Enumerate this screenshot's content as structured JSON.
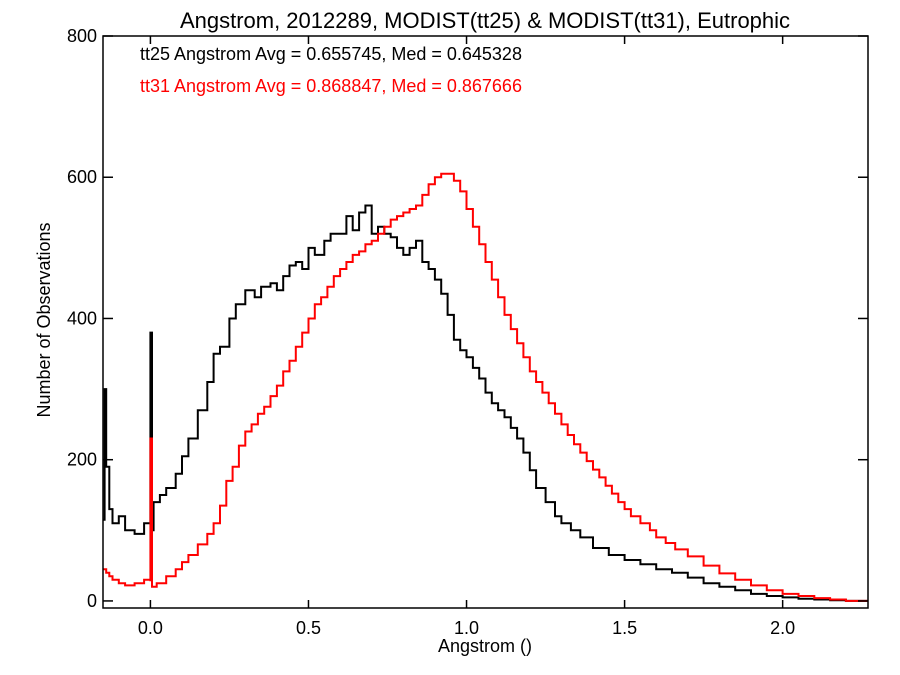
{
  "chart_data": {
    "type": "line",
    "title": "Angstrom, 2012289, MODIST(tt25) & MODIST(tt31), Eutrophic",
    "xlabel": "Angstrom ()",
    "ylabel": "Number of Observations",
    "xlim": [
      -0.15,
      2.27
    ],
    "ylim": [
      -10,
      800
    ],
    "x_ticks": [
      0.0,
      0.5,
      1.0,
      1.5,
      2.0
    ],
    "x_tick_labels": [
      "0.0",
      "0.5",
      "1.0",
      "1.5",
      "2.0"
    ],
    "y_ticks": [
      0,
      200,
      400,
      600,
      800
    ],
    "y_tick_labels": [
      "0",
      "200",
      "400",
      "600",
      "800"
    ],
    "grid": false,
    "annotations": [
      {
        "text": "tt25 Angstrom Avg = 0.655745, Med = 0.645328",
        "color": "#000000"
      },
      {
        "text": "tt31 Angstrom Avg = 0.868847, Med = 0.867666",
        "color": "#ff0000"
      }
    ],
    "series": [
      {
        "color": "#000000",
        "step": true,
        "points": [
          [
            -0.15,
            115
          ],
          [
            -0.145,
            300
          ],
          [
            -0.14,
            190
          ],
          [
            -0.13,
            130
          ],
          [
            -0.12,
            110
          ],
          [
            -0.1,
            120
          ],
          [
            -0.08,
            100
          ],
          [
            -0.05,
            95
          ],
          [
            -0.02,
            110
          ],
          [
            0.0,
            120
          ],
          [
            0.0,
            380
          ],
          [
            0.005,
            100
          ],
          [
            0.01,
            140
          ],
          [
            0.03,
            150
          ],
          [
            0.05,
            160
          ],
          [
            0.08,
            180
          ],
          [
            0.1,
            205
          ],
          [
            0.12,
            230
          ],
          [
            0.15,
            270
          ],
          [
            0.18,
            310
          ],
          [
            0.2,
            350
          ],
          [
            0.22,
            360
          ],
          [
            0.25,
            400
          ],
          [
            0.27,
            420
          ],
          [
            0.3,
            440
          ],
          [
            0.33,
            430
          ],
          [
            0.35,
            445
          ],
          [
            0.38,
            450
          ],
          [
            0.4,
            440
          ],
          [
            0.42,
            460
          ],
          [
            0.44,
            475
          ],
          [
            0.46,
            480
          ],
          [
            0.48,
            470
          ],
          [
            0.5,
            500
          ],
          [
            0.52,
            490
          ],
          [
            0.55,
            510
          ],
          [
            0.57,
            520
          ],
          [
            0.6,
            520
          ],
          [
            0.62,
            545
          ],
          [
            0.64,
            525
          ],
          [
            0.66,
            550
          ],
          [
            0.68,
            560
          ],
          [
            0.7,
            520
          ],
          [
            0.72,
            530
          ],
          [
            0.74,
            520
          ],
          [
            0.76,
            515
          ],
          [
            0.78,
            500
          ],
          [
            0.8,
            490
          ],
          [
            0.82,
            500
          ],
          [
            0.84,
            510
          ],
          [
            0.86,
            480
          ],
          [
            0.88,
            470
          ],
          [
            0.9,
            455
          ],
          [
            0.92,
            435
          ],
          [
            0.94,
            405
          ],
          [
            0.96,
            370
          ],
          [
            0.98,
            355
          ],
          [
            1.0,
            345
          ],
          [
            1.02,
            330
          ],
          [
            1.04,
            315
          ],
          [
            1.06,
            295
          ],
          [
            1.08,
            280
          ],
          [
            1.1,
            270
          ],
          [
            1.12,
            260
          ],
          [
            1.14,
            245
          ],
          [
            1.16,
            230
          ],
          [
            1.18,
            210
          ],
          [
            1.2,
            185
          ],
          [
            1.22,
            160
          ],
          [
            1.25,
            140
          ],
          [
            1.28,
            120
          ],
          [
            1.3,
            110
          ],
          [
            1.33,
            100
          ],
          [
            1.36,
            90
          ],
          [
            1.4,
            75
          ],
          [
            1.45,
            65
          ],
          [
            1.5,
            58
          ],
          [
            1.55,
            52
          ],
          [
            1.6,
            45
          ],
          [
            1.65,
            40
          ],
          [
            1.7,
            33
          ],
          [
            1.75,
            25
          ],
          [
            1.8,
            20
          ],
          [
            1.85,
            15
          ],
          [
            1.9,
            10
          ],
          [
            1.95,
            7
          ],
          [
            2.0,
            5
          ],
          [
            2.05,
            3
          ],
          [
            2.1,
            2
          ],
          [
            2.15,
            1
          ],
          [
            2.2,
            0
          ],
          [
            2.27,
            0
          ]
        ]
      },
      {
        "color": "#ff0000",
        "step": true,
        "points": [
          [
            -0.15,
            45
          ],
          [
            -0.14,
            40
          ],
          [
            -0.13,
            35
          ],
          [
            -0.12,
            30
          ],
          [
            -0.1,
            25
          ],
          [
            -0.08,
            22
          ],
          [
            -0.05,
            25
          ],
          [
            -0.02,
            30
          ],
          [
            0.0,
            28
          ],
          [
            0.0,
            230
          ],
          [
            0.005,
            20
          ],
          [
            0.02,
            25
          ],
          [
            0.05,
            35
          ],
          [
            0.08,
            45
          ],
          [
            0.1,
            55
          ],
          [
            0.12,
            65
          ],
          [
            0.15,
            80
          ],
          [
            0.18,
            95
          ],
          [
            0.2,
            110
          ],
          [
            0.22,
            135
          ],
          [
            0.24,
            170
          ],
          [
            0.26,
            190
          ],
          [
            0.28,
            220
          ],
          [
            0.3,
            240
          ],
          [
            0.32,
            250
          ],
          [
            0.34,
            265
          ],
          [
            0.36,
            275
          ],
          [
            0.38,
            290
          ],
          [
            0.4,
            305
          ],
          [
            0.42,
            325
          ],
          [
            0.44,
            340
          ],
          [
            0.46,
            360
          ],
          [
            0.48,
            380
          ],
          [
            0.5,
            400
          ],
          [
            0.52,
            420
          ],
          [
            0.54,
            430
          ],
          [
            0.56,
            445
          ],
          [
            0.58,
            460
          ],
          [
            0.6,
            470
          ],
          [
            0.62,
            480
          ],
          [
            0.64,
            490
          ],
          [
            0.66,
            495
          ],
          [
            0.68,
            505
          ],
          [
            0.7,
            510
          ],
          [
            0.72,
            520
          ],
          [
            0.74,
            530
          ],
          [
            0.76,
            540
          ],
          [
            0.78,
            545
          ],
          [
            0.8,
            550
          ],
          [
            0.82,
            555
          ],
          [
            0.84,
            560
          ],
          [
            0.86,
            575
          ],
          [
            0.88,
            590
          ],
          [
            0.9,
            600
          ],
          [
            0.92,
            605
          ],
          [
            0.94,
            605
          ],
          [
            0.96,
            595
          ],
          [
            0.98,
            580
          ],
          [
            1.0,
            555
          ],
          [
            1.02,
            530
          ],
          [
            1.04,
            505
          ],
          [
            1.06,
            480
          ],
          [
            1.08,
            455
          ],
          [
            1.1,
            430
          ],
          [
            1.12,
            405
          ],
          [
            1.14,
            385
          ],
          [
            1.16,
            365
          ],
          [
            1.18,
            345
          ],
          [
            1.2,
            325
          ],
          [
            1.22,
            310
          ],
          [
            1.24,
            295
          ],
          [
            1.26,
            280
          ],
          [
            1.28,
            265
          ],
          [
            1.3,
            250
          ],
          [
            1.32,
            235
          ],
          [
            1.34,
            222
          ],
          [
            1.36,
            210
          ],
          [
            1.38,
            198
          ],
          [
            1.4,
            186
          ],
          [
            1.42,
            175
          ],
          [
            1.44,
            163
          ],
          [
            1.46,
            152
          ],
          [
            1.48,
            140
          ],
          [
            1.5,
            130
          ],
          [
            1.52,
            120
          ],
          [
            1.55,
            110
          ],
          [
            1.58,
            100
          ],
          [
            1.6,
            90
          ],
          [
            1.63,
            82
          ],
          [
            1.66,
            73
          ],
          [
            1.7,
            63
          ],
          [
            1.75,
            50
          ],
          [
            1.8,
            39
          ],
          [
            1.85,
            30
          ],
          [
            1.9,
            22
          ],
          [
            1.95,
            15
          ],
          [
            2.0,
            10
          ],
          [
            2.05,
            7
          ],
          [
            2.1,
            4
          ],
          [
            2.15,
            2
          ],
          [
            2.2,
            0
          ],
          [
            2.27,
            0
          ]
        ]
      }
    ]
  }
}
